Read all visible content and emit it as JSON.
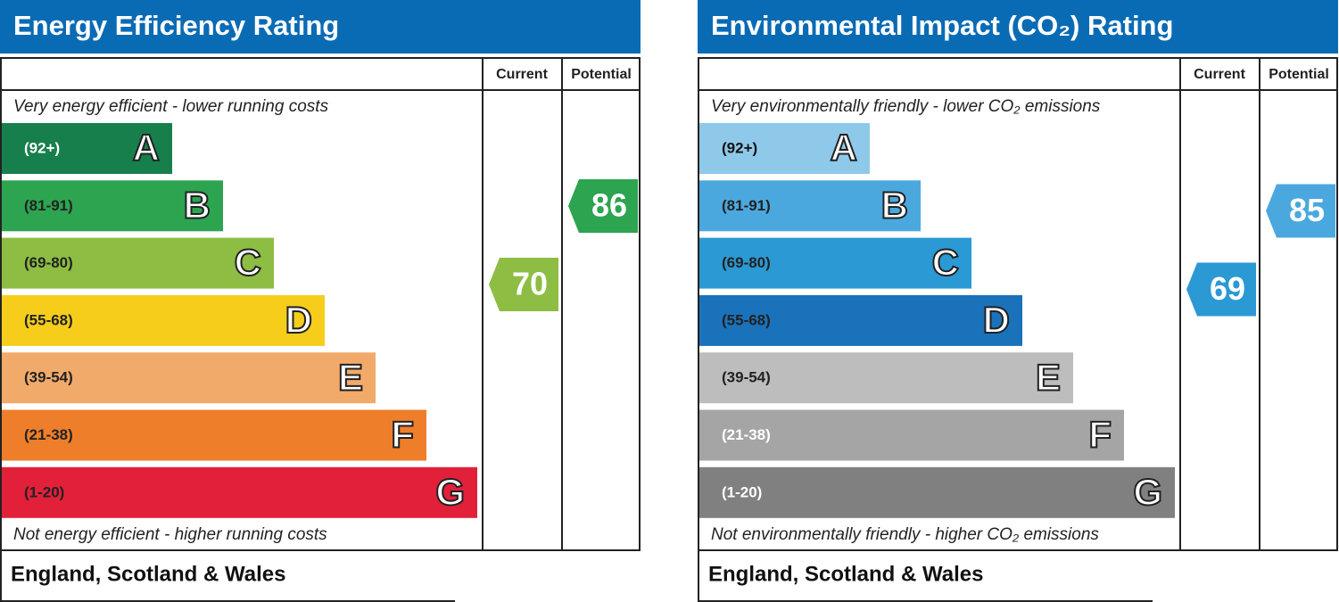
{
  "panels": [
    {
      "title": "Energy Efficiency Rating",
      "header_current": "Current",
      "header_potential": "Potential",
      "top_note": "Very energy efficient - lower running costs",
      "bottom_note": "Not energy efficient - higher running costs",
      "bands": [
        {
          "range": "(92+)",
          "letter": "A",
          "color": "#177f4c",
          "text_color": "#ffffff"
        },
        {
          "range": "(81-91)",
          "letter": "B",
          "color": "#2ca450",
          "text_color": "#222222"
        },
        {
          "range": "(69-80)",
          "letter": "C",
          "color": "#8dbd43",
          "text_color": "#222222"
        },
        {
          "range": "(55-68)",
          "letter": "D",
          "color": "#f6cd1b",
          "text_color": "#222222"
        },
        {
          "range": "(39-54)",
          "letter": "E",
          "color": "#f2aa6b",
          "text_color": "#222222"
        },
        {
          "range": "(21-38)",
          "letter": "F",
          "color": "#ee7e2a",
          "text_color": "#222222"
        },
        {
          "range": "(1-20)",
          "letter": "G",
          "color": "#e2203a",
          "text_color": "#222222"
        }
      ],
      "current": {
        "value": 70,
        "color": "#8dbd43"
      },
      "potential": {
        "value": 86,
        "color": "#2ca450"
      },
      "footer": "England, Scotland & Wales"
    },
    {
      "title": "Environmental Impact (CO₂) Rating",
      "header_current": "Current",
      "header_potential": "Potential",
      "top_note": "Very environmentally friendly - lower CO₂ emissions",
      "bottom_note": "Not environmentally friendly - higher CO₂ emissions",
      "bands": [
        {
          "range": "(92+)",
          "letter": "A",
          "color": "#8ec9ea",
          "text_color": "#111111"
        },
        {
          "range": "(81-91)",
          "letter": "B",
          "color": "#4aa8de",
          "text_color": "#222222"
        },
        {
          "range": "(69-80)",
          "letter": "C",
          "color": "#2b99d3",
          "text_color": "#222222"
        },
        {
          "range": "(55-68)",
          "letter": "D",
          "color": "#1a72bb",
          "text_color": "#222222"
        },
        {
          "range": "(39-54)",
          "letter": "E",
          "color": "#bdbdbd",
          "text_color": "#222222"
        },
        {
          "range": "(21-38)",
          "letter": "F",
          "color": "#a5a5a5",
          "text_color": "#ffffff"
        },
        {
          "range": "(1-20)",
          "letter": "G",
          "color": "#808080",
          "text_color": "#ffffff"
        }
      ],
      "current": {
        "value": 69,
        "color": "#2b99d3"
      },
      "potential": {
        "value": 85,
        "color": "#4aa8de"
      },
      "footer": "England, Scotland & Wales"
    }
  ]
}
